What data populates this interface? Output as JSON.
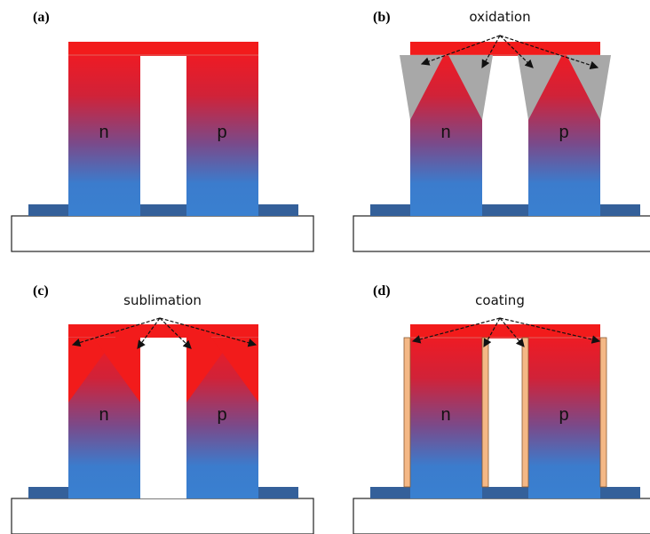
{
  "panels": [
    {
      "label": "(a)",
      "left_leg": "n",
      "right_leg": "p"
    },
    {
      "label": "(b)",
      "annotation": "oxidation",
      "left_leg": "n",
      "right_leg": "p"
    },
    {
      "label": "(c)",
      "annotation": "sublimation",
      "left_leg": "n",
      "right_leg": "p"
    },
    {
      "label": "(d)",
      "annotation": "coating",
      "left_leg": "n",
      "right_leg": "p"
    }
  ]
}
